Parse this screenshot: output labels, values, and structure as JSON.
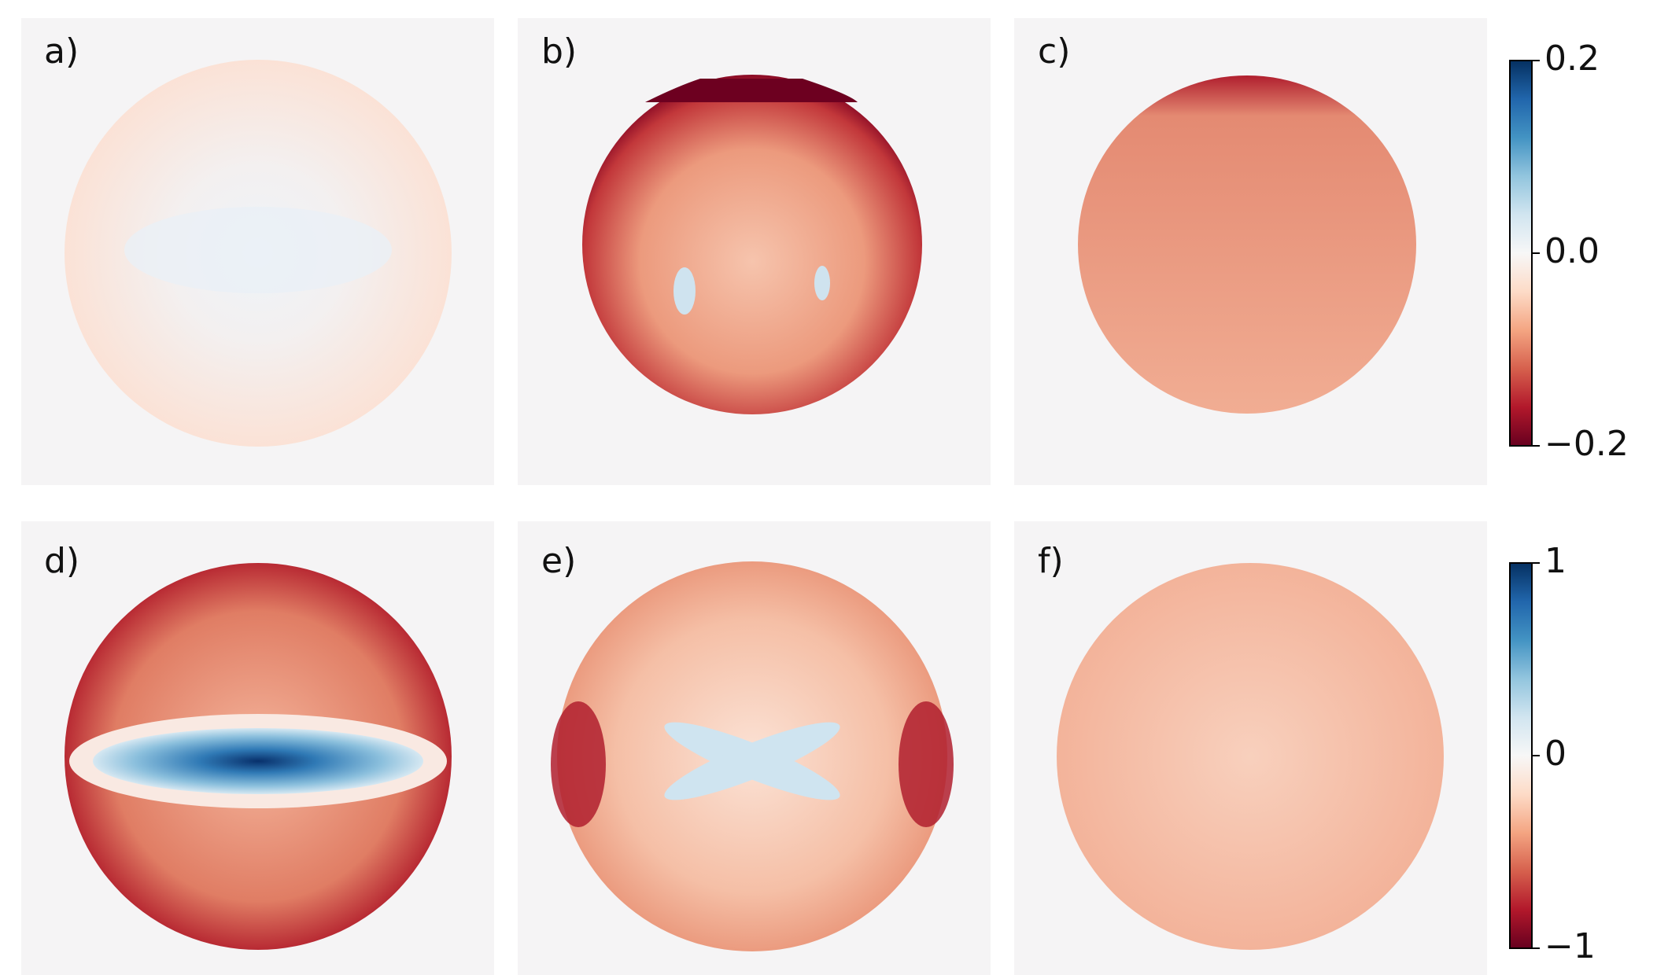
{
  "panels": [
    {
      "label": "a)"
    },
    {
      "label": "b)"
    },
    {
      "label": "c)"
    },
    {
      "label": "d)"
    },
    {
      "label": "e)"
    },
    {
      "label": "f)"
    }
  ],
  "colorbars": [
    {
      "lim": [
        -0.2,
        0.2
      ],
      "ticks": [
        {
          "value": 0.2,
          "label": "0.2"
        },
        {
          "value": 0,
          "label": "0.0"
        },
        {
          "value": -0.2,
          "label": "−0.2"
        }
      ]
    },
    {
      "lim": [
        -1,
        1
      ],
      "ticks": [
        1,
        0,
        {
          "value": -1,
          "label": "−1"
        }
      ]
    }
  ]
}
